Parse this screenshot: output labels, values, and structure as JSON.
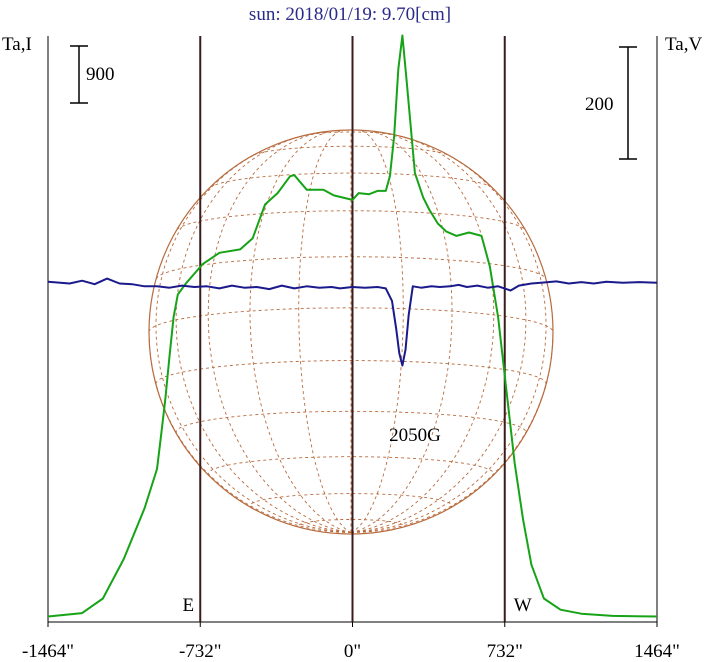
{
  "chart_data": {
    "type": "line",
    "title": "sun: 2018/01/19: 9.70[cm]",
    "left_axis_label": "Ta,I",
    "right_axis_label": "Ta,V",
    "x_unit": "arcsec",
    "xlim": [
      -1464,
      1464
    ],
    "x_ticks": [
      -1464,
      -732,
      0,
      732,
      1464
    ],
    "x_tick_labels": [
      "-1464\"",
      "-732\"",
      "0\"",
      "732\"",
      "1464\""
    ],
    "vertical_markers": [
      {
        "x": -732,
        "label": "E"
      },
      {
        "x": 0,
        "label": ""
      },
      {
        "x": 732,
        "label": "W"
      }
    ],
    "scale_bars": [
      {
        "axis": "left",
        "label": "900"
      },
      {
        "axis": "right",
        "label": "200"
      }
    ],
    "annotation": {
      "text": "2050G",
      "x": 240
    },
    "series": [
      {
        "id": "intensity",
        "color": "#17a317",
        "axis": "left",
        "ylim": [
          0,
          5000
        ],
        "points": [
          [
            -1464,
            40
          ],
          [
            -1300,
            70
          ],
          [
            -1200,
            200
          ],
          [
            -1100,
            550
          ],
          [
            -1000,
            1000
          ],
          [
            -940,
            1350
          ],
          [
            -920,
            1650
          ],
          [
            -900,
            1970
          ],
          [
            -880,
            2350
          ],
          [
            -860,
            2700
          ],
          [
            -840,
            2900
          ],
          [
            -800,
            3000
          ],
          [
            -720,
            3170
          ],
          [
            -640,
            3270
          ],
          [
            -540,
            3300
          ],
          [
            -480,
            3400
          ],
          [
            -420,
            3700
          ],
          [
            -360,
            3800
          ],
          [
            -300,
            3950
          ],
          [
            -280,
            3960
          ],
          [
            -220,
            3830
          ],
          [
            -140,
            3830
          ],
          [
            -90,
            3780
          ],
          [
            0,
            3740
          ],
          [
            30,
            3800
          ],
          [
            80,
            3790
          ],
          [
            120,
            3820
          ],
          [
            160,
            3820
          ],
          [
            180,
            3950
          ],
          [
            200,
            4300
          ],
          [
            220,
            4900
          ],
          [
            240,
            5200
          ],
          [
            260,
            4800
          ],
          [
            300,
            3980
          ],
          [
            340,
            3760
          ],
          [
            370,
            3650
          ],
          [
            410,
            3530
          ],
          [
            450,
            3460
          ],
          [
            500,
            3420
          ],
          [
            560,
            3450
          ],
          [
            620,
            3420
          ],
          [
            660,
            3150
          ],
          [
            700,
            2700
          ],
          [
            740,
            2050
          ],
          [
            780,
            1400
          ],
          [
            820,
            900
          ],
          [
            860,
            500
          ],
          [
            920,
            200
          ],
          [
            1000,
            100
          ],
          [
            1100,
            65
          ],
          [
            1250,
            45
          ],
          [
            1464,
            40
          ]
        ]
      },
      {
        "id": "circular_polarization",
        "color": "#1a1a8c",
        "axis": "right",
        "ylim": [
          -400,
          400
        ],
        "points": [
          [
            -1464,
            5
          ],
          [
            -1360,
            0
          ],
          [
            -1300,
            8
          ],
          [
            -1240,
            -2
          ],
          [
            -1180,
            14
          ],
          [
            -1120,
            0
          ],
          [
            -1060,
            -2
          ],
          [
            -1000,
            -8
          ],
          [
            -940,
            -8
          ],
          [
            -880,
            -12
          ],
          [
            -820,
            -6
          ],
          [
            -760,
            -10
          ],
          [
            -700,
            -8
          ],
          [
            -640,
            -14
          ],
          [
            -580,
            -6
          ],
          [
            -520,
            -12
          ],
          [
            -460,
            -10
          ],
          [
            -400,
            -16
          ],
          [
            -340,
            -6
          ],
          [
            -280,
            -14
          ],
          [
            -220,
            -8
          ],
          [
            -160,
            -12
          ],
          [
            -100,
            -10
          ],
          [
            -60,
            -14
          ],
          [
            0,
            -10
          ],
          [
            60,
            -12
          ],
          [
            120,
            -10
          ],
          [
            160,
            -14
          ],
          [
            190,
            -50
          ],
          [
            210,
            -130
          ],
          [
            225,
            -200
          ],
          [
            240,
            -235
          ],
          [
            255,
            -190
          ],
          [
            270,
            -90
          ],
          [
            290,
            -8
          ],
          [
            330,
            -12
          ],
          [
            380,
            -8
          ],
          [
            420,
            -10
          ],
          [
            470,
            -8
          ],
          [
            510,
            -4
          ],
          [
            550,
            -10
          ],
          [
            600,
            -6
          ],
          [
            650,
            -12
          ],
          [
            700,
            -8
          ],
          [
            760,
            -20
          ],
          [
            800,
            -6
          ],
          [
            860,
            0
          ],
          [
            920,
            3
          ],
          [
            980,
            6
          ],
          [
            1040,
            0
          ],
          [
            1100,
            4
          ],
          [
            1160,
            0
          ],
          [
            1220,
            5
          ],
          [
            1300,
            2
          ],
          [
            1380,
            4
          ],
          [
            1464,
            2
          ]
        ]
      }
    ]
  }
}
